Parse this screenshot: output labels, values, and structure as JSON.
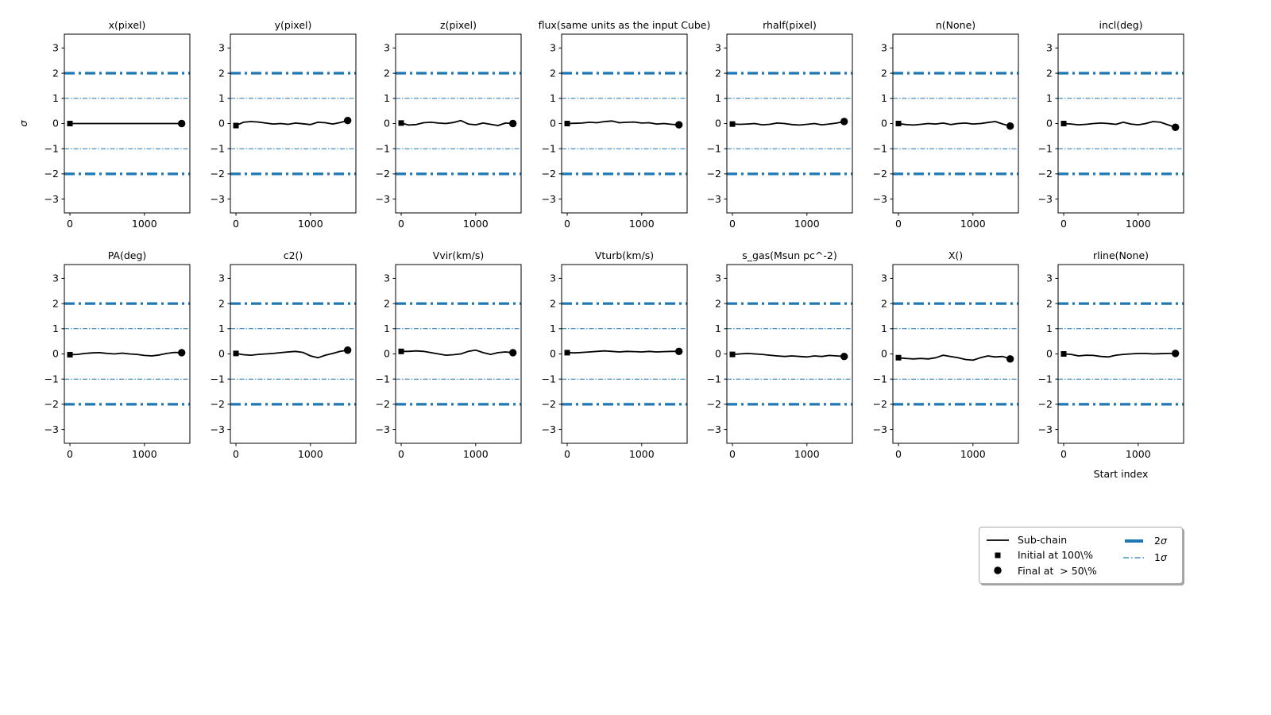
{
  "figure": {
    "ylabel": "σ",
    "xlabel": "Start index",
    "colors": {
      "blue": "#1f77b4",
      "black": "#000000",
      "background": "#ffffff"
    }
  },
  "axes": {
    "xlim": [
      -75,
      1610
    ],
    "ylim": [
      -3.55,
      3.55
    ],
    "xticks": [
      0,
      1000
    ],
    "yticks": [
      3,
      2,
      1,
      0,
      -1,
      -2,
      -3
    ],
    "grid": false,
    "hlines": [
      {
        "y": 2,
        "sigma": "2σ",
        "weight": "thick",
        "style": "dashdot",
        "color": "#1f77b4"
      },
      {
        "y": 1,
        "sigma": "1σ",
        "weight": "thin",
        "style": "dashdot",
        "color": "#1f77b4"
      },
      {
        "y": -1,
        "sigma": "1σ",
        "weight": "thin",
        "style": "dashdot",
        "color": "#1f77b4"
      },
      {
        "y": -2,
        "sigma": "2σ",
        "weight": "thick",
        "style": "dashdot",
        "color": "#1f77b4"
      }
    ]
  },
  "chart_data": [
    {
      "type": "line",
      "title": "x(pixel)",
      "row": 0,
      "col": 0,
      "x": [
        0,
        100,
        200,
        300,
        400,
        500,
        600,
        700,
        800,
        900,
        1000,
        1100,
        1200,
        1300,
        1400,
        1500
      ],
      "y": [
        0,
        0,
        0,
        0,
        0,
        0,
        0,
        0,
        0,
        0,
        0,
        0,
        0,
        0,
        0,
        0
      ],
      "start_marker": "square",
      "end_marker": "circle"
    },
    {
      "type": "line",
      "title": "y(pixel)",
      "row": 0,
      "col": 1,
      "x": [
        0,
        100,
        200,
        300,
        400,
        500,
        600,
        700,
        800,
        900,
        1000,
        1100,
        1200,
        1300,
        1400,
        1500
      ],
      "y": [
        -0.08,
        0.05,
        0.08,
        0.06,
        0.02,
        -0.02,
        0,
        -0.03,
        0.02,
        -0.01,
        -0.04,
        0.05,
        0.03,
        -0.02,
        0.04,
        0.12
      ],
      "start_marker": "square",
      "end_marker": "circle"
    },
    {
      "type": "line",
      "title": "z(pixel)",
      "row": 0,
      "col": 2,
      "x": [
        0,
        100,
        200,
        300,
        400,
        500,
        600,
        700,
        800,
        900,
        1000,
        1100,
        1200,
        1300,
        1400,
        1500
      ],
      "y": [
        0.02,
        -0.06,
        -0.04,
        0.03,
        0.05,
        0.02,
        0,
        0.04,
        0.12,
        -0.02,
        -0.05,
        0.02,
        -0.03,
        -0.08,
        0.02,
        0
      ],
      "start_marker": "square",
      "end_marker": "circle"
    },
    {
      "type": "line",
      "title": "flux(same units as the input Cube)",
      "row": 0,
      "col": 3,
      "x": [
        0,
        100,
        200,
        300,
        400,
        500,
        600,
        700,
        800,
        900,
        1000,
        1100,
        1200,
        1300,
        1400,
        1500
      ],
      "y": [
        0,
        0.01,
        0.02,
        0.05,
        0.03,
        0.08,
        0.1,
        0.03,
        0.05,
        0.06,
        0.02,
        0.03,
        -0.02,
        0,
        -0.03,
        -0.05
      ],
      "start_marker": "square",
      "end_marker": "circle"
    },
    {
      "type": "line",
      "title": "rhalf(pixel)",
      "row": 0,
      "col": 4,
      "x": [
        0,
        100,
        200,
        300,
        400,
        500,
        600,
        700,
        800,
        900,
        1000,
        1100,
        1200,
        1300,
        1400,
        1500
      ],
      "y": [
        -0.02,
        -0.03,
        -0.02,
        0,
        -0.05,
        -0.03,
        0.02,
        0,
        -0.04,
        -0.06,
        -0.03,
        0,
        -0.05,
        -0.02,
        0.02,
        0.08
      ],
      "start_marker": "square",
      "end_marker": "circle"
    },
    {
      "type": "line",
      "title": "n(None)",
      "row": 0,
      "col": 5,
      "x": [
        0,
        100,
        200,
        300,
        400,
        500,
        600,
        700,
        800,
        900,
        1000,
        1100,
        1200,
        1300,
        1400,
        1500
      ],
      "y": [
        0,
        -0.04,
        -0.06,
        -0.03,
        0,
        -0.02,
        0.02,
        -0.04,
        0,
        0.02,
        -0.02,
        0,
        0.04,
        0.08,
        -0.02,
        -0.1
      ],
      "start_marker": "square",
      "end_marker": "circle"
    },
    {
      "type": "line",
      "title": "incl(deg)",
      "row": 0,
      "col": 6,
      "x": [
        0,
        100,
        200,
        300,
        400,
        500,
        600,
        700,
        800,
        900,
        1000,
        1100,
        1200,
        1300,
        1400,
        1500
      ],
      "y": [
        0,
        -0.02,
        -0.05,
        -0.03,
        0,
        0.02,
        0,
        -0.03,
        0.05,
        -0.02,
        -0.05,
        0,
        0.08,
        0.05,
        -0.05,
        -0.15
      ],
      "start_marker": "square",
      "end_marker": "circle"
    },
    {
      "type": "line",
      "title": "PA(deg)",
      "row": 1,
      "col": 0,
      "x": [
        0,
        100,
        200,
        300,
        400,
        500,
        600,
        700,
        800,
        900,
        1000,
        1100,
        1200,
        1300,
        1400,
        1500
      ],
      "y": [
        -0.03,
        -0.02,
        0.02,
        0.04,
        0.05,
        0.02,
        0,
        0.03,
        0,
        -0.02,
        -0.06,
        -0.08,
        -0.04,
        0.02,
        0.06,
        0.05
      ],
      "start_marker": "square",
      "end_marker": "circle"
    },
    {
      "type": "line",
      "title": "c2()",
      "row": 1,
      "col": 1,
      "x": [
        0,
        100,
        200,
        300,
        400,
        500,
        600,
        700,
        800,
        900,
        1000,
        1100,
        1200,
        1300,
        1400,
        1500
      ],
      "y": [
        0.02,
        -0.03,
        -0.05,
        -0.02,
        0,
        0.02,
        0.05,
        0.08,
        0.1,
        0.06,
        -0.08,
        -0.15,
        -0.05,
        0.02,
        0.1,
        0.15
      ],
      "start_marker": "square",
      "end_marker": "circle"
    },
    {
      "type": "line",
      "title": "Vvir(km/s)",
      "row": 1,
      "col": 2,
      "x": [
        0,
        100,
        200,
        300,
        400,
        500,
        600,
        700,
        800,
        900,
        1000,
        1100,
        1200,
        1300,
        1400,
        1500
      ],
      "y": [
        0.1,
        0.1,
        0.12,
        0.1,
        0.05,
        0,
        -0.05,
        -0.03,
        0,
        0.1,
        0.15,
        0.05,
        -0.02,
        0.05,
        0.08,
        0.05
      ],
      "start_marker": "square",
      "end_marker": "circle"
    },
    {
      "type": "line",
      "title": "Vturb(km/s)",
      "row": 1,
      "col": 3,
      "x": [
        0,
        100,
        200,
        300,
        400,
        500,
        600,
        700,
        800,
        900,
        1000,
        1100,
        1200,
        1300,
        1400,
        1500
      ],
      "y": [
        0.05,
        0.04,
        0.06,
        0.08,
        0.1,
        0.12,
        0.1,
        0.08,
        0.1,
        0.09,
        0.08,
        0.1,
        0.08,
        0.09,
        0.1,
        0.1
      ],
      "start_marker": "square",
      "end_marker": "circle"
    },
    {
      "type": "line",
      "title": "s_gas(Msun pc^-2)",
      "row": 1,
      "col": 4,
      "x": [
        0,
        100,
        200,
        300,
        400,
        500,
        600,
        700,
        800,
        900,
        1000,
        1100,
        1200,
        1300,
        1400,
        1500
      ],
      "y": [
        -0.02,
        0,
        0.02,
        0,
        -0.02,
        -0.05,
        -0.08,
        -0.1,
        -0.08,
        -0.1,
        -0.12,
        -0.08,
        -0.1,
        -0.06,
        -0.08,
        -0.1
      ],
      "start_marker": "square",
      "end_marker": "circle"
    },
    {
      "type": "line",
      "title": "X()",
      "row": 1,
      "col": 5,
      "x": [
        0,
        100,
        200,
        300,
        400,
        500,
        600,
        700,
        800,
        900,
        1000,
        1100,
        1200,
        1300,
        1400,
        1500
      ],
      "y": [
        -0.15,
        -0.18,
        -0.2,
        -0.18,
        -0.2,
        -0.15,
        -0.05,
        -0.1,
        -0.15,
        -0.22,
        -0.25,
        -0.15,
        -0.08,
        -0.12,
        -0.1,
        -0.2
      ],
      "start_marker": "square",
      "end_marker": "circle"
    },
    {
      "type": "line",
      "title": "rline(None)",
      "row": 1,
      "col": 6,
      "x": [
        0,
        100,
        200,
        300,
        400,
        500,
        600,
        700,
        800,
        900,
        1000,
        1100,
        1200,
        1300,
        1400,
        1500
      ],
      "y": [
        0,
        -0.02,
        -0.08,
        -0.05,
        -0.06,
        -0.1,
        -0.12,
        -0.05,
        -0.02,
        0,
        0.02,
        0.02,
        0,
        0.01,
        0.02,
        0.02
      ],
      "start_marker": "square",
      "end_marker": "circle"
    }
  ],
  "legend": {
    "entries": [
      {
        "label": "Sub-chain",
        "glyph": "black-line"
      },
      {
        "label": "Initial at 100\\%",
        "glyph": "black-square"
      },
      {
        "label": "Final at  > 50\\%",
        "glyph": "black-circle"
      },
      {
        "label": "2",
        "suffix": "σ",
        "glyph": "thick-blue-line"
      },
      {
        "label": "1",
        "suffix": "σ",
        "glyph": "thin-blue-dashdot-line"
      }
    ]
  }
}
